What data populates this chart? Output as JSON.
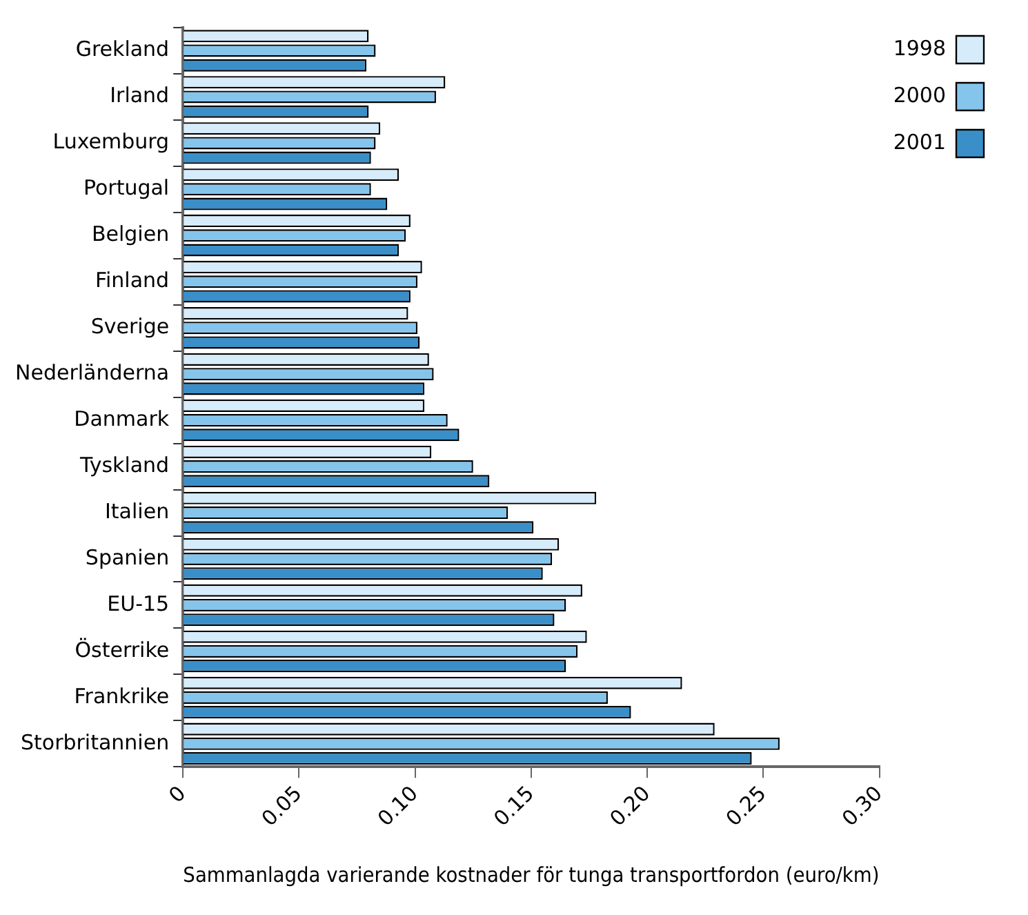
{
  "chart_data": {
    "type": "bar",
    "orientation": "horizontal",
    "xlabel": "Sammanlagda varierande kostnader för tunga transportfordon (euro/km)",
    "categories": [
      "Grekland",
      "Irland",
      "Luxemburg",
      "Portugal",
      "Belgien",
      "Finland",
      "Sverige",
      "Nederländerna",
      "Danmark",
      "Tyskland",
      "Italien",
      "Spanien",
      "EU-15",
      "Österrike",
      "Frankrike",
      "Storbritannien"
    ],
    "series": [
      {
        "name": "1998",
        "color": "#d6ecfa",
        "values": [
          0.08,
          0.113,
          0.085,
          0.093,
          0.098,
          0.103,
          0.097,
          0.106,
          0.104,
          0.107,
          0.178,
          0.162,
          0.172,
          0.174,
          0.215,
          0.229
        ]
      },
      {
        "name": "2000",
        "color": "#85c5ec",
        "values": [
          0.083,
          0.109,
          0.083,
          0.081,
          0.096,
          0.101,
          0.101,
          0.108,
          0.114,
          0.125,
          0.14,
          0.159,
          0.165,
          0.17,
          0.183,
          0.257
        ]
      },
      {
        "name": "2001",
        "color": "#3a8fc8",
        "values": [
          0.079,
          0.08,
          0.081,
          0.088,
          0.093,
          0.098,
          0.102,
          0.104,
          0.119,
          0.132,
          0.151,
          0.155,
          0.16,
          0.165,
          0.193,
          0.245
        ]
      }
    ],
    "xlim": [
      0,
      0.3
    ],
    "xticks": [
      0,
      0.05,
      {
        "value": 0.1,
        "label": "0.10"
      },
      0.15,
      {
        "value": 0.2,
        "label": "0.20"
      },
      0.25,
      {
        "value": 0.3,
        "label": "0.30"
      }
    ],
    "grid": false,
    "legend": "top right"
  }
}
